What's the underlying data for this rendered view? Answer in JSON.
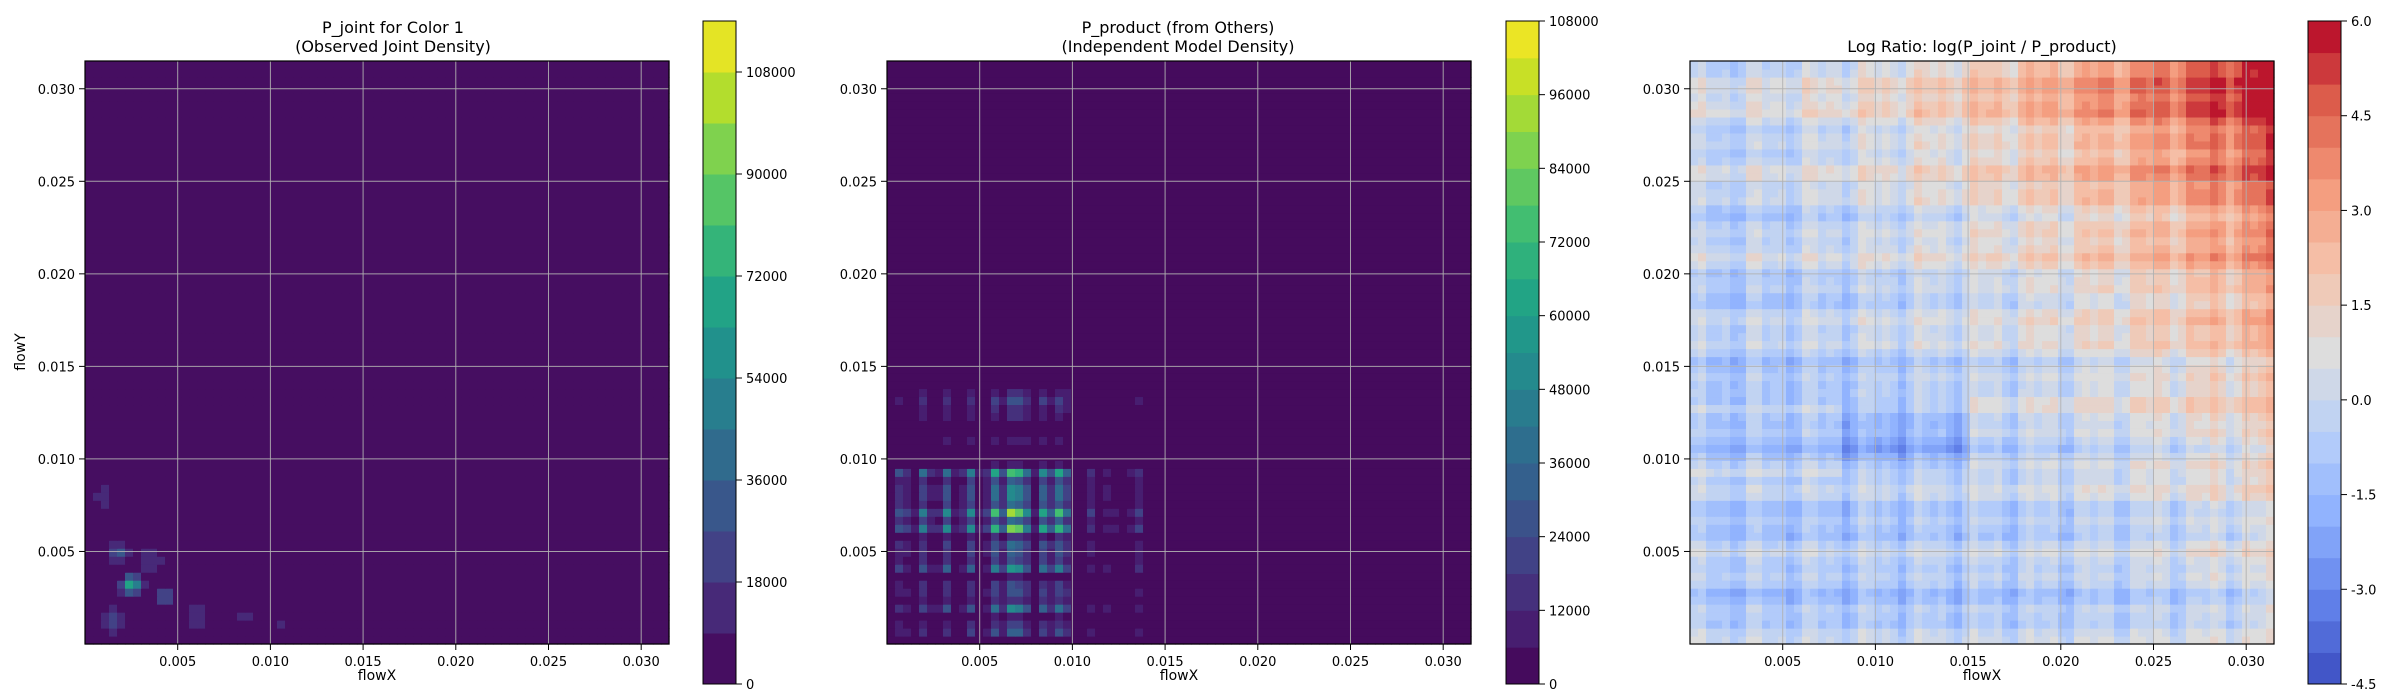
{
  "chart_data": [
    {
      "type": "heatmap",
      "title": "P_joint for Color 1\n(Observed Joint Density)",
      "xlabel": "flowX",
      "ylabel": "flowY",
      "xlim": [
        0,
        0.0315
      ],
      "ylim": [
        0,
        0.0315
      ],
      "x_ticks": [
        "0.005",
        "0.010",
        "0.015",
        "0.020",
        "0.025",
        "0.030"
      ],
      "y_ticks": [
        "0.005",
        "0.010",
        "0.015",
        "0.020",
        "0.025",
        "0.030"
      ],
      "grid": true,
      "colormap": "viridis",
      "colorbar": {
        "range": [
          0,
          117000
        ],
        "ticks": [
          "0",
          "18000",
          "36000",
          "54000",
          "72000",
          "90000",
          "108000"
        ],
        "levels": 13
      },
      "hotspots": [
        {
          "x": 0.0015,
          "y": 0.0013,
          "v": 30000,
          "s": 0.0006
        },
        {
          "x": 0.0025,
          "y": 0.0032,
          "v": 70000,
          "s": 0.0005
        },
        {
          "x": 0.0018,
          "y": 0.005,
          "v": 35000,
          "s": 0.0005
        },
        {
          "x": 0.0043,
          "y": 0.0026,
          "v": 30000,
          "s": 0.0005
        },
        {
          "x": 0.0035,
          "y": 0.0045,
          "v": 18000,
          "s": 0.0008
        },
        {
          "x": 0.001,
          "y": 0.008,
          "v": 12000,
          "s": 0.0009
        },
        {
          "x": 0.006,
          "y": 0.0015,
          "v": 14000,
          "s": 0.0008
        },
        {
          "x": 0.0085,
          "y": 0.0015,
          "v": 12000,
          "s": 0.0007
        },
        {
          "x": 0.0105,
          "y": 0.001,
          "v": 10000,
          "s": 0.0006
        },
        {
          "x": 0.0075,
          "y": 0.006,
          "v": 8000,
          "s": 0.0009
        },
        {
          "x": 0.0045,
          "y": 0.008,
          "v": 9000,
          "s": 0.0007
        },
        {
          "x": 0.0015,
          "y": 0.013,
          "v": 6000,
          "s": 0.0007
        },
        {
          "x": 0.01,
          "y": 0.0045,
          "v": 7000,
          "s": 0.0007
        }
      ]
    },
    {
      "type": "heatmap",
      "title": "P_product (from Others)\n(Independent Model Density)",
      "xlabel": "flowX",
      "ylabel": "",
      "xlim": [
        0,
        0.0315
      ],
      "ylim": [
        0,
        0.0315
      ],
      "x_ticks": [
        "0.005",
        "0.010",
        "0.015",
        "0.020",
        "0.025",
        "0.030"
      ],
      "y_ticks": [
        "0.005",
        "0.010",
        "0.015",
        "0.020",
        "0.025",
        "0.030"
      ],
      "grid": true,
      "colormap": "viridis",
      "colorbar": {
        "range": [
          0,
          108000
        ],
        "ticks": [
          "0",
          "12000",
          "24000",
          "36000",
          "48000",
          "60000",
          "72000",
          "84000",
          "96000",
          "108000"
        ],
        "levels": 18
      },
      "x_peaks": [
        {
          "x": 0.0008,
          "w": 0.4
        },
        {
          "x": 0.002,
          "w": 0.5
        },
        {
          "x": 0.0032,
          "w": 0.55
        },
        {
          "x": 0.0045,
          "w": 0.6
        },
        {
          "x": 0.0058,
          "w": 0.8
        },
        {
          "x": 0.0067,
          "w": 1.0
        },
        {
          "x": 0.0073,
          "w": 0.9
        },
        {
          "x": 0.0085,
          "w": 0.75
        },
        {
          "x": 0.0094,
          "w": 0.9
        },
        {
          "x": 0.011,
          "w": 0.2
        },
        {
          "x": 0.012,
          "w": 0.15
        },
        {
          "x": 0.0135,
          "w": 0.25
        }
      ],
      "y_peaks": [
        {
          "y": 0.0008,
          "w": 0.4
        },
        {
          "y": 0.002,
          "w": 0.5
        },
        {
          "y": 0.003,
          "w": 0.4
        },
        {
          "y": 0.0042,
          "w": 0.6
        },
        {
          "y": 0.0052,
          "w": 0.5
        },
        {
          "y": 0.0063,
          "w": 0.9
        },
        {
          "y": 0.0072,
          "w": 0.95
        },
        {
          "y": 0.0082,
          "w": 0.7
        },
        {
          "y": 0.0092,
          "w": 0.8
        },
        {
          "y": 0.011,
          "w": 0.12
        },
        {
          "y": 0.0125,
          "w": 0.2
        },
        {
          "y": 0.0133,
          "w": 0.3
        }
      ],
      "peak_value": 100000
    },
    {
      "type": "heatmap",
      "title": "Log Ratio: log(P_joint / P_product)",
      "xlabel": "flowX",
      "ylabel": "",
      "xlim": [
        0,
        0.0315
      ],
      "ylim": [
        0,
        0.0315
      ],
      "x_ticks": [
        "0.005",
        "0.010",
        "0.015",
        "0.020",
        "0.025",
        "0.030"
      ],
      "y_ticks": [
        "0.005",
        "0.010",
        "0.015",
        "0.020",
        "0.025",
        "0.030"
      ],
      "grid": true,
      "colormap": "coolwarm",
      "colorbar": {
        "range": [
          -4.5,
          6.0
        ],
        "ticks": [
          "-4.5",
          "-3.0",
          "-1.5",
          "0.0",
          "1.5",
          "3.0",
          "4.5",
          "6.0"
        ],
        "levels": 21
      }
    }
  ]
}
